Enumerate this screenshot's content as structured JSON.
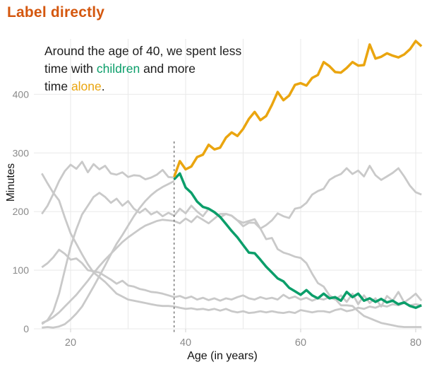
{
  "title": "Label directly",
  "annotation": {
    "line1": "Around the age of 40, we spent less",
    "line2_before": "time with ",
    "highlight_children": "children",
    "line2_after": " and more",
    "line3_before": "time ",
    "highlight_alone": "alone",
    "line3_after": "."
  },
  "colors": {
    "title": "#d4570e",
    "green": "#0b9e6a",
    "amber": "#eaa50f",
    "gray_line": "#c9c9c9",
    "grid": "#e9e9e9",
    "tick_text": "#8a8a8a",
    "axis_text": "#111111",
    "dashed": "#5f5f5f",
    "text": "#1d1d1d"
  },
  "chart_data": {
    "type": "line",
    "xlabel": "Age (in years)",
    "ylabel": "Minutes",
    "xlim": [
      15,
      81
    ],
    "ylim": [
      0,
      500
    ],
    "x_ticks": [
      20,
      40,
      60,
      80
    ],
    "x_gridlines": [
      20,
      30,
      40,
      50,
      60,
      70,
      80
    ],
    "y_ticks": [
      0,
      100,
      200,
      300,
      400
    ],
    "grid": true,
    "legend": "none (lines labeled via annotation colors)",
    "dashed_line_age": 38,
    "series": [
      {
        "name": "gray-1",
        "color": "gray",
        "start_age": 15,
        "values": [
          265,
          248,
          232,
          219,
          190,
          163,
          145,
          127,
          110,
          96,
          88,
          80,
          70,
          60,
          55,
          50,
          48,
          46,
          44,
          42,
          40,
          39,
          39,
          38,
          36,
          34,
          35,
          33,
          34,
          32,
          34,
          31,
          34,
          30,
          28,
          30,
          27,
          28,
          30,
          28,
          30,
          28,
          27,
          29,
          27,
          32,
          30,
          28,
          30,
          30,
          28,
          32,
          34,
          30,
          32,
          36,
          34,
          38,
          36,
          40,
          38,
          42,
          40,
          44,
          40,
          42,
          40
        ]
      },
      {
        "name": "gray-2",
        "color": "gray",
        "start_age": 15,
        "values": [
          105,
          112,
          122,
          135,
          128,
          118,
          120,
          112,
          100,
          98,
          96,
          90,
          84,
          77,
          82,
          74,
          72,
          68,
          66,
          63,
          62,
          60,
          57,
          54,
          56,
          52,
          55,
          50,
          53,
          49,
          52,
          48,
          52,
          50,
          54,
          57,
          52,
          50,
          54,
          51,
          53,
          50,
          58,
          52,
          55,
          50,
          53,
          48,
          52,
          50,
          54,
          50,
          57,
          46,
          60,
          42,
          57,
          44,
          52,
          38,
          56,
          48,
          63,
          45,
          52,
          60,
          48
        ]
      },
      {
        "name": "gray-3",
        "color": "gray",
        "start_age": 15,
        "values": [
          10,
          14,
          20,
          28,
          38,
          48,
          58,
          70,
          82,
          95,
          107,
          118,
          128,
          138,
          148,
          156,
          163,
          170,
          176,
          180,
          184,
          186,
          185,
          184,
          180,
          188,
          182,
          192,
          186,
          180,
          188,
          196,
          196,
          193,
          185,
          175,
          181,
          181,
          171,
          177,
          185,
          197,
          192,
          189,
          205,
          207,
          215,
          229,
          235,
          239,
          254,
          260,
          264,
          274,
          264,
          270,
          260,
          278,
          262,
          254,
          260,
          266,
          274,
          260,
          244,
          233,
          229
        ]
      },
      {
        "name": "gray-4",
        "color": "gray",
        "start_age": 15,
        "values": [
          8,
          15,
          30,
          60,
          100,
          140,
          170,
          195,
          210,
          225,
          232,
          225,
          215,
          222,
          210,
          218,
          205,
          198,
          205,
          195,
          200,
          192,
          198,
          193,
          205,
          197,
          210,
          200,
          192,
          205,
          198,
          190,
          196,
          193,
          185,
          181,
          184,
          187,
          171,
          153,
          155,
          136,
          130,
          127,
          123,
          121,
          112,
          94,
          78,
          72,
          57,
          51,
          40,
          40,
          39,
          30,
          22,
          18,
          14,
          10,
          8,
          6,
          4,
          3,
          3,
          3,
          3
        ]
      },
      {
        "name": "alone-gray-segment",
        "color": "gray",
        "start_age": 15,
        "values": [
          196,
          210,
          230,
          252,
          269,
          280,
          273,
          285,
          267,
          281,
          272,
          278,
          265,
          263,
          267,
          259,
          262,
          261,
          255,
          258,
          263,
          271,
          259,
          258
        ]
      },
      {
        "name": "children-gray-segment",
        "color": "gray",
        "start_age": 15,
        "values": [
          2,
          3,
          2,
          4,
          8,
          16,
          26,
          38,
          55,
          72,
          90,
          108,
          127,
          145,
          160,
          176,
          192,
          206,
          218,
          228,
          236,
          242,
          247,
          252
        ]
      },
      {
        "name": "children",
        "color": "green",
        "start_age": 38,
        "values": [
          255,
          265,
          241,
          232,
          217,
          208,
          205,
          199,
          191,
          179,
          167,
          156,
          143,
          130,
          129,
          118,
          106,
          96,
          86,
          81,
          70,
          64,
          58,
          66,
          57,
          52,
          60,
          52,
          54,
          48,
          63,
          54,
          60,
          48,
          52,
          46,
          51,
          45,
          48,
          42,
          45,
          39,
          36,
          40
        ]
      },
      {
        "name": "alone",
        "color": "amber",
        "start_age": 38,
        "values": [
          259,
          286,
          272,
          277,
          293,
          297,
          314,
          306,
          309,
          326,
          335,
          329,
          341,
          358,
          370,
          356,
          363,
          382,
          404,
          390,
          398,
          416,
          419,
          415,
          428,
          433,
          455,
          448,
          438,
          437,
          445,
          455,
          449,
          450,
          485,
          461,
          464,
          470,
          466,
          463,
          468,
          477,
          491,
          482
        ]
      }
    ]
  }
}
